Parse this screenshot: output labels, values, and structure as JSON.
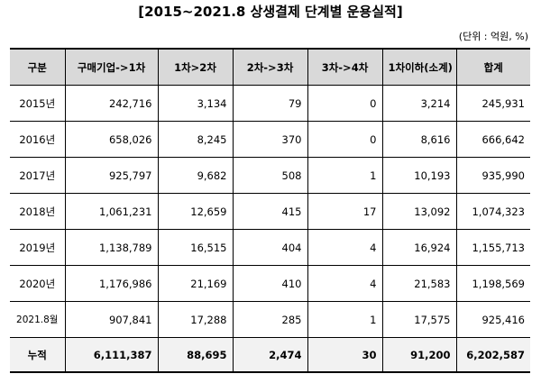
{
  "title": "[2015~2021.8 상생결제 단계별 운용실적]",
  "unit": "(단위 : 억원, %)",
  "table": {
    "headers": [
      "구분",
      "구매기업->1차",
      "1차>2차",
      "2차->3차",
      "3차->4차",
      "1차이하(소계)",
      "합계"
    ],
    "rows": [
      [
        "2015년",
        "242,716",
        "3,134",
        "79",
        "0",
        "3,214",
        "245,931"
      ],
      [
        "2016년",
        "658,026",
        "8,245",
        "370",
        "0",
        "8,616",
        "666,642"
      ],
      [
        "2017년",
        "925,797",
        "9,682",
        "508",
        "1",
        "10,193",
        "935,990"
      ],
      [
        "2018년",
        "1,061,231",
        "12,659",
        "415",
        "17",
        "13,092",
        "1,074,323"
      ],
      [
        "2019년",
        "1,138,789",
        "16,515",
        "404",
        "4",
        "16,924",
        "1,155,713"
      ],
      [
        "2020년",
        "1,176,986",
        "21,169",
        "410",
        "4",
        "21,583",
        "1,198,569"
      ],
      [
        "2021.8월",
        "907,841",
        "17,288",
        "285",
        "1",
        "17,575",
        "925,416"
      ]
    ],
    "total": [
      "누적",
      "6,111,387",
      "88,695",
      "2,474",
      "30",
      "91,200",
      "6,202,587"
    ]
  },
  "colors": {
    "header_bg": "#d9d9d9",
    "total_bg": "#f2f2f2"
  }
}
